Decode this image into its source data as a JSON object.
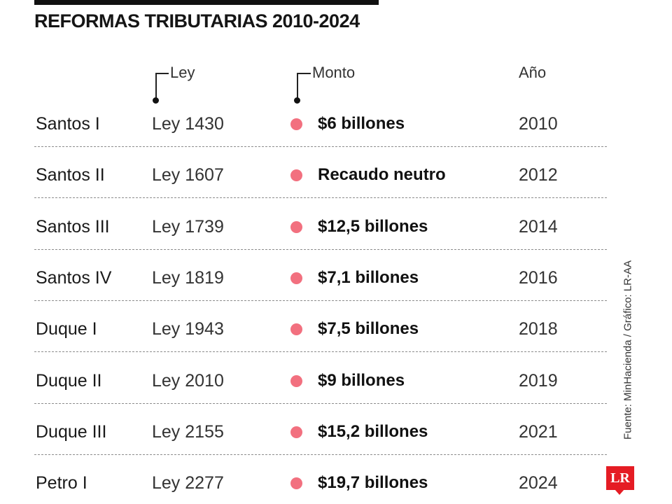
{
  "title": "REFORMAS TRIBUTARIAS 2010-2024",
  "headers": {
    "ley": "Ley",
    "monto": "Monto",
    "anio": "Año"
  },
  "source": "Fuente: MinHacienda / Gráfico: LR-AA",
  "logo": "LR",
  "colors": {
    "accent": "#f2707f",
    "logo": "#e51c24"
  },
  "chart_data": {
    "type": "table",
    "title": "REFORMAS TRIBUTARIAS 2010-2024",
    "columns": [
      "",
      "Ley",
      "Monto",
      "Año"
    ],
    "rows": [
      {
        "name": "Santos I",
        "ley": "Ley 1430",
        "monto": "$6 billones",
        "anio": "2010"
      },
      {
        "name": "Santos II",
        "ley": "Ley 1607",
        "monto": "Recaudo  neutro",
        "anio": "2012"
      },
      {
        "name": "Santos III",
        "ley": "Ley 1739",
        "monto": "$12,5 billones",
        "anio": "2014"
      },
      {
        "name": "Santos IV",
        "ley": "Ley 1819",
        "monto": "$7,1 billones",
        "anio": "2016"
      },
      {
        "name": "Duque I",
        "ley": "Ley 1943",
        "monto": "$7,5 billones",
        "anio": "2018"
      },
      {
        "name": "Duque II",
        "ley": "Ley 2010",
        "monto": "$9 billones",
        "anio": "2019"
      },
      {
        "name": "Duque III",
        "ley": "Ley 2155",
        "monto": "$15,2 billones",
        "anio": "2021"
      },
      {
        "name": "Petro I",
        "ley": "Ley 2277",
        "monto": "$19,7 billones",
        "anio": "2024"
      }
    ]
  }
}
